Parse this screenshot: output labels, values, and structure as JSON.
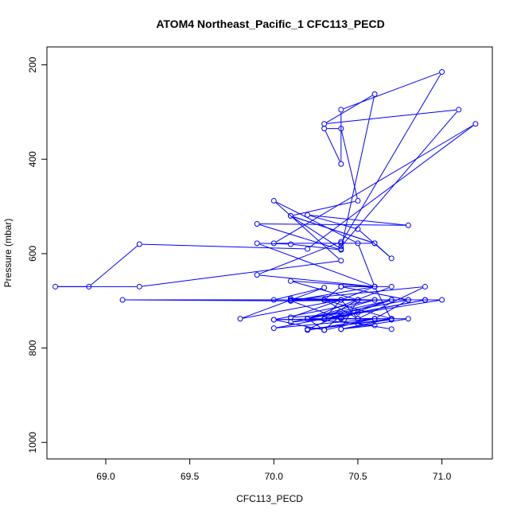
{
  "chart_data": {
    "type": "line",
    "title": "ATOM4 Northeast_Pacific_1 CFC113_PECD",
    "xlabel": "CFC113_PECD",
    "ylabel": "Pressure (mbar)",
    "xlim": [
      68.65,
      71.3
    ],
    "ylim": [
      1035,
      162
    ],
    "y_reversed": true,
    "x_ticks": [
      "69.0",
      "69.5",
      "70.0",
      "70.5",
      "71.0"
    ],
    "y_ticks": [
      "200",
      "400",
      "600",
      "800",
      "1000"
    ],
    "grid": false,
    "legend": "none",
    "colors": {
      "series": "#0000ff",
      "axis": "#000000"
    },
    "series": [
      {
        "x": [
          70.7,
          70.5,
          70.2,
          70.3,
          70.6,
          70.4,
          70.5,
          70.1,
          70.4,
          70.3,
          70.5,
          70.9,
          70.3,
          70.7,
          70.4,
          70.1,
          70.2,
          70.6,
          70.4,
          70.8,
          70.4,
          70.1,
          70.5,
          70.3,
          70.8,
          70.6,
          70.2,
          70.7,
          70.5,
          70.9,
          70.1,
          70.4,
          69.8,
          70.3,
          70.0,
          70.4,
          70.6,
          70.7,
          70.2,
          70.4,
          70.3,
          70.0,
          70.6,
          70.2,
          70.7,
          70.4,
          70.6,
          70.1,
          69.1,
          70.7,
          70.1,
          70.4,
          70.5,
          70.3,
          70.9,
          70.0,
          70.6,
          70.2,
          70.8,
          70.4,
          70.3,
          70.6,
          70.1,
          70.4,
          70.7,
          70.2,
          70.5,
          70.0,
          70.3,
          71.0,
          70.3,
          70.7,
          70.4,
          70.5,
          70.1,
          70.6,
          69.9,
          70.4,
          70.4,
          71.1,
          70.3,
          70.6,
          70.4,
          70.1,
          70.6,
          70.7,
          70.5,
          70.2,
          70.8,
          69.9,
          70.4,
          70.1,
          69.9,
          70.6,
          70.5,
          70.0,
          70.4,
          69.2,
          68.7,
          68.9,
          69.2,
          70.2,
          71.2,
          70.0,
          70.6,
          70.1,
          70.5,
          70.4,
          70.3,
          70.4,
          70.4,
          71.0,
          70.4
        ],
        "y": [
          760,
          748,
          738,
          762,
          738,
          737,
          725,
          735,
          698,
          738,
          698,
          698,
          739,
          698,
          735,
          745,
          738,
          752,
          760,
          738,
          738,
          700,
          698,
          698,
          698,
          738,
          762,
          738,
          738,
          670,
          698,
          698,
          738,
          672,
          698,
          698,
          670,
          740,
          760,
          730,
          762,
          740,
          698,
          738,
          670,
          670,
          670,
          700,
          698,
          698,
          700,
          698,
          738,
          698,
          698,
          758,
          738,
          738,
          698,
          670,
          698,
          698,
          695,
          698,
          698,
          738,
          738,
          740,
          738,
          698,
          698,
          738,
          760,
          698,
          658,
          670,
          645,
          575,
          585,
          295,
          325,
          262,
          590,
          520,
          578,
          610,
          548,
          518,
          540,
          537,
          592,
          580,
          578,
          670,
          578,
          488,
          615,
          670,
          670,
          670,
          580,
          590,
          325,
          578,
          578,
          520,
          488,
          335,
          335,
          410,
          295,
          215,
          578
        ]
      }
    ]
  }
}
